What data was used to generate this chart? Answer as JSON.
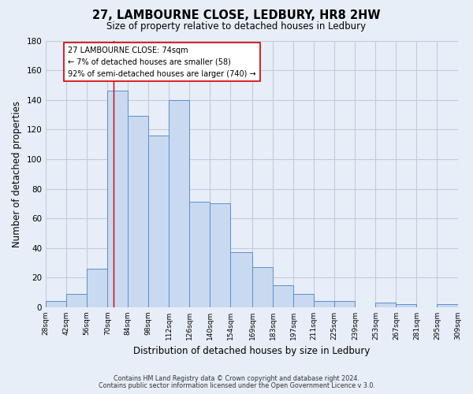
{
  "title": "27, LAMBOURNE CLOSE, LEDBURY, HR8 2HW",
  "subtitle": "Size of property relative to detached houses in Ledbury",
  "xlabel": "Distribution of detached houses by size in Ledbury",
  "ylabel": "Number of detached properties",
  "bin_edges": [
    28,
    42,
    56,
    70,
    84,
    98,
    112,
    126,
    140,
    154,
    169,
    183,
    197,
    211,
    225,
    239,
    253,
    267,
    281,
    295,
    309
  ],
  "bin_labels": [
    "28sqm",
    "42sqm",
    "56sqm",
    "70sqm",
    "84sqm",
    "98sqm",
    "112sqm",
    "126sqm",
    "140sqm",
    "154sqm",
    "169sqm",
    "183sqm",
    "197sqm",
    "211sqm",
    "225sqm",
    "239sqm",
    "253sqm",
    "267sqm",
    "281sqm",
    "295sqm",
    "309sqm"
  ],
  "counts": [
    4,
    9,
    26,
    146,
    129,
    116,
    140,
    71,
    70,
    37,
    27,
    15,
    9,
    4,
    4,
    0,
    3,
    2,
    0,
    2
  ],
  "bar_facecolor": "#c9d9f0",
  "bar_edgecolor": "#5b8fcc",
  "property_line_x": 74,
  "property_line_color": "#cc0000",
  "annotation_title": "27 LAMBOURNE CLOSE: 74sqm",
  "annotation_line1": "← 7% of detached houses are smaller (58)",
  "annotation_line2": "92% of semi-detached houses are larger (740) →",
  "annotation_box_edgecolor": "#cc0000",
  "annotation_box_facecolor": "#ffffff",
  "ylim": [
    0,
    180
  ],
  "yticks": [
    0,
    20,
    40,
    60,
    80,
    100,
    120,
    140,
    160,
    180
  ],
  "grid_color": "#c0ccdd",
  "background_color": "#e8eef8",
  "footer1": "Contains HM Land Registry data © Crown copyright and database right 2024.",
  "footer2": "Contains public sector information licensed under the Open Government Licence v 3.0."
}
